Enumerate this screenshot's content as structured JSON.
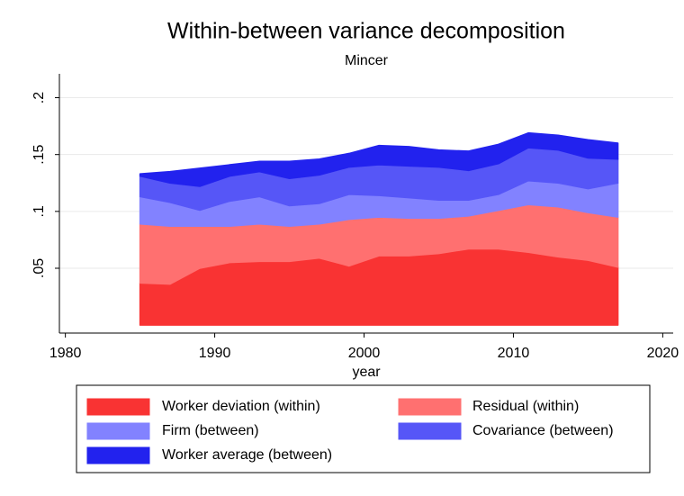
{
  "chart_data": {
    "type": "stacked_area",
    "title": "Within-between variance decomposition",
    "subtitle": "Mincer",
    "x_label": "year",
    "x": [
      1985,
      1987,
      1989,
      1991,
      1993,
      1995,
      1997,
      1999,
      2001,
      2003,
      2005,
      2007,
      2009,
      2011,
      2013,
      2015,
      2017
    ],
    "series": [
      {
        "name": "Worker deviation (within)",
        "color": "#f93333",
        "values": [
          0.037,
          0.036,
          0.05,
          0.055,
          0.056,
          0.056,
          0.059,
          0.052,
          0.061,
          0.061,
          0.063,
          0.067,
          0.067,
          0.064,
          0.06,
          0.057,
          0.051
        ]
      },
      {
        "name": "Residual (within)",
        "color": "#ff7070",
        "values": [
          0.052,
          0.051,
          0.037,
          0.032,
          0.033,
          0.031,
          0.03,
          0.041,
          0.034,
          0.033,
          0.031,
          0.029,
          0.034,
          0.042,
          0.044,
          0.042,
          0.044
        ]
      },
      {
        "name": "Firm (between)",
        "color": "#8282ff",
        "values": [
          0.024,
          0.021,
          0.014,
          0.022,
          0.024,
          0.018,
          0.018,
          0.022,
          0.019,
          0.018,
          0.016,
          0.014,
          0.014,
          0.021,
          0.021,
          0.021,
          0.03
        ]
      },
      {
        "name": "Covariance (between)",
        "color": "#5656f7",
        "values": [
          0.018,
          0.017,
          0.021,
          0.022,
          0.022,
          0.024,
          0.025,
          0.024,
          0.027,
          0.028,
          0.029,
          0.026,
          0.027,
          0.029,
          0.029,
          0.027,
          0.021
        ]
      },
      {
        "name": "Worker average (between)",
        "color": "#2222ee",
        "values": [
          0.002,
          0.01,
          0.016,
          0.01,
          0.009,
          0.015,
          0.014,
          0.012,
          0.017,
          0.017,
          0.015,
          0.017,
          0.017,
          0.013,
          0.013,
          0.016,
          0.014
        ]
      }
    ],
    "xlim": [
      1979.6,
      2020.7
    ],
    "xticks": [
      1980,
      1990,
      2000,
      2010,
      2020
    ],
    "ylim": [
      -0.007,
      0.221
    ],
    "yticks": [
      {
        "value": 0.05,
        "label": ".05"
      },
      {
        "value": 0.1,
        "label": ".1"
      },
      {
        "value": 0.15,
        "label": ".15"
      },
      {
        "value": 0.2,
        "label": ".2"
      }
    ],
    "grid": true,
    "legend": "bottom"
  }
}
